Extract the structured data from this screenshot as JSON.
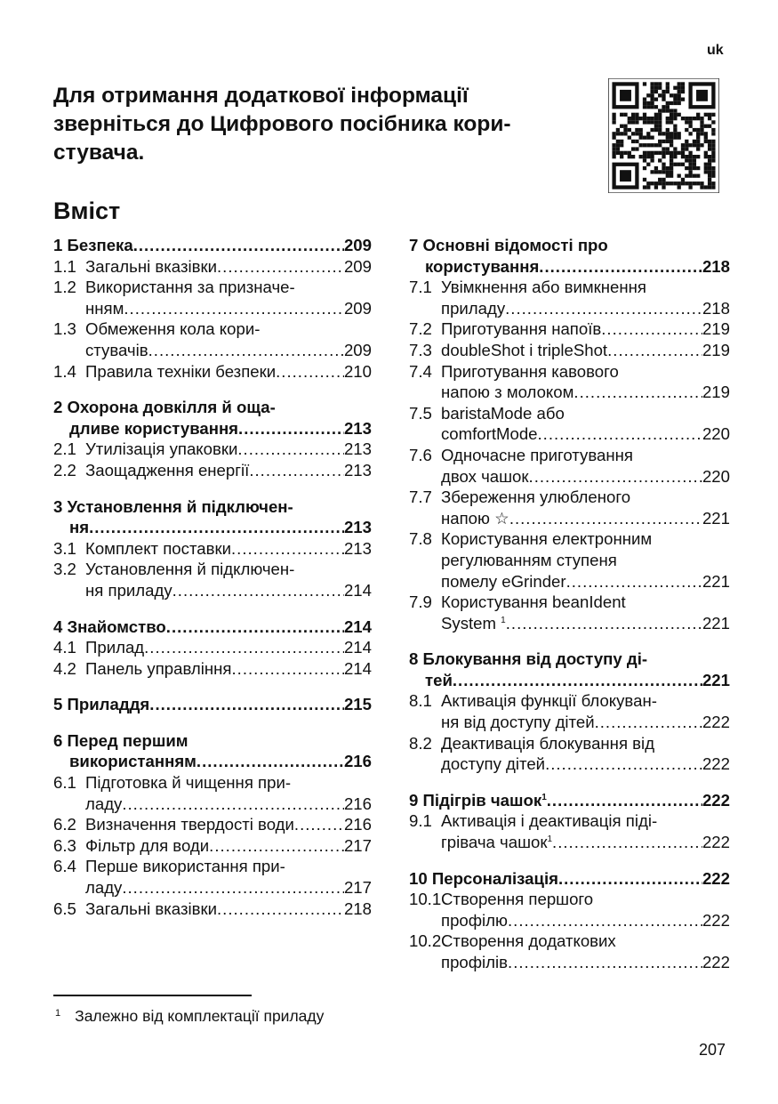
{
  "lang": "uk",
  "title_lines": [
    "Для отримання додаткової інформації",
    "зверніться до Цифрового посібника кори-",
    "стувача."
  ],
  "qr_icon": "qr-code",
  "toc_heading": "Вміст",
  "columns": [
    [
      {
        "num": "1",
        "lines": [
          "Безпека"
        ],
        "page": "209",
        "items": [
          {
            "num": "1.1",
            "lines": [
              "Загальні вказівки"
            ],
            "page": "209"
          },
          {
            "num": "1.2",
            "lines": [
              "Використання за призначе-",
              "нням"
            ],
            "page": "209"
          },
          {
            "num": "1.3",
            "lines": [
              "Обмеження кола кори-",
              "стувачів"
            ],
            "page": "209"
          },
          {
            "num": "1.4",
            "lines": [
              "Правила техніки безпеки"
            ],
            "page": "210"
          }
        ]
      },
      {
        "num": "2",
        "lines": [
          "Охорона довкілля й оща-",
          "дливе користування"
        ],
        "page": "213",
        "items": [
          {
            "num": "2.1",
            "lines": [
              "Утилізація упаковки"
            ],
            "page": "213"
          },
          {
            "num": "2.2",
            "lines": [
              "Заощадження енергії"
            ],
            "page": "213"
          }
        ]
      },
      {
        "num": "3",
        "lines": [
          "Установлення й підключен-",
          "ня"
        ],
        "page": "213",
        "items": [
          {
            "num": "3.1",
            "lines": [
              "Комплект поставки"
            ],
            "page": "213"
          },
          {
            "num": "3.2",
            "lines": [
              "Установлення й підключен-",
              "ня приладу"
            ],
            "page": "214"
          }
        ]
      },
      {
        "num": "4",
        "lines": [
          "Знайомство"
        ],
        "page": "214",
        "items": [
          {
            "num": "4.1",
            "lines": [
              "Прилад"
            ],
            "page": "214"
          },
          {
            "num": "4.2",
            "lines": [
              "Панель управління"
            ],
            "page": "214"
          }
        ]
      },
      {
        "num": "5",
        "lines": [
          "Приладдя"
        ],
        "page": "215",
        "items": []
      },
      {
        "num": "6",
        "lines": [
          "Перед першим",
          "використанням"
        ],
        "page": "216",
        "items": [
          {
            "num": "6.1",
            "lines": [
              "Підготовка й чищення при-",
              "ладу"
            ],
            "page": "216"
          },
          {
            "num": "6.2",
            "lines": [
              "Визначення твердості води"
            ],
            "page": "216"
          },
          {
            "num": "6.3",
            "lines": [
              "Фільтр для води"
            ],
            "page": "217"
          },
          {
            "num": "6.4",
            "lines": [
              "Перше використання при-",
              "ладу"
            ],
            "page": "217"
          },
          {
            "num": "6.5",
            "lines": [
              "Загальні вказівки"
            ],
            "page": "218"
          }
        ]
      }
    ],
    [
      {
        "num": "7",
        "lines": [
          "Основні відомості про",
          "користування"
        ],
        "page": "218",
        "items": [
          {
            "num": "7.1",
            "lines": [
              "Увімкнення або вимкнення",
              "приладу"
            ],
            "page": "218"
          },
          {
            "num": "7.2",
            "lines": [
              "Приготування напоїв"
            ],
            "page": "219"
          },
          {
            "num": "7.3",
            "lines": [
              "doubleShot і tripleShot"
            ],
            "page": "219"
          },
          {
            "num": "7.4",
            "lines": [
              "Приготування кавового",
              "напою з молоком"
            ],
            "page": "219"
          },
          {
            "num": "7.5",
            "lines": [
              "baristaMode або",
              "comfortMode"
            ],
            "page": "220"
          },
          {
            "num": "7.6",
            "lines": [
              "Одночасне приготування",
              "двох чашок"
            ],
            "page": "220"
          },
          {
            "num": "7.7",
            "lines": [
              "Збереження улюбленого",
              "напою ☆"
            ],
            "page": "221"
          },
          {
            "num": "7.8",
            "lines": [
              "Користування електронним",
              "регулюванням ступеня",
              "помелу eGrinder"
            ],
            "page": "221"
          },
          {
            "num": "7.9",
            "lines": [
              "Користування beanIdent",
              "System "
            ],
            "sup": "1",
            "page": "221"
          }
        ]
      },
      {
        "num": "8",
        "lines": [
          "Блокування від доступу ді-",
          "тей"
        ],
        "page": "221",
        "items": [
          {
            "num": "8.1",
            "lines": [
              "Активація функції блокуван-",
              "ня від доступу дітей"
            ],
            "page": "222"
          },
          {
            "num": "8.2",
            "lines": [
              "Деактивація блокування від",
              "доступу дітей"
            ],
            "page": "222"
          }
        ]
      },
      {
        "num": "9",
        "lines": [
          "Підігрів чашок"
        ],
        "sup": "1",
        "page": "222",
        "items": [
          {
            "num": "9.1",
            "lines": [
              "Активація і деактивація піді-",
              "грівача чашок"
            ],
            "sup": "1",
            "page": "222"
          }
        ]
      },
      {
        "num": "10",
        "lines": [
          "Персоналізація"
        ],
        "page": "222",
        "items": [
          {
            "num": "10.1",
            "lines": [
              "Створення першого",
              "профілю"
            ],
            "page": "222"
          },
          {
            "num": "10.2",
            "lines": [
              "Створення додаткових",
              "профілів"
            ],
            "page": "222"
          }
        ]
      }
    ]
  ],
  "footnote": {
    "num": "1",
    "text": "Залежно від комплектації приладу"
  },
  "page_number": "207"
}
